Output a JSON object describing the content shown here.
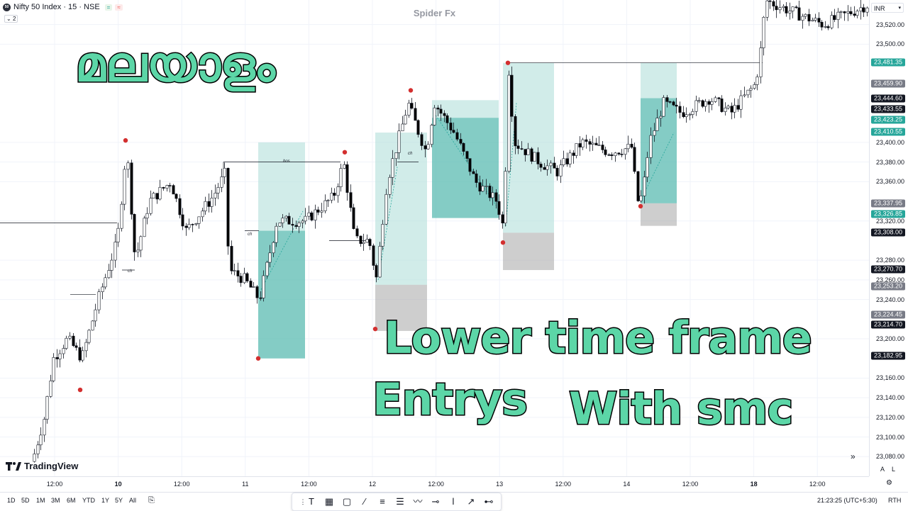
{
  "symbol": {
    "name": "Nifty 50 Index · 15 · NSE",
    "logo_text": "50",
    "badge1": "=",
    "badge2": "≈",
    "collapse_count": "2"
  },
  "watermark": "Spider Fx",
  "currency": "INR",
  "overlay": {
    "title_ml": "മലയാളം",
    "line1": "Lower time frame",
    "line2a": "Entrys",
    "line2b": "With smc"
  },
  "brand": "TradingView",
  "chart_labels": {
    "bos": "bos",
    "ch": "ch"
  },
  "colors": {
    "up": "#ffffff",
    "down": "#000000",
    "zone_green": "#26a69a",
    "zone_light": "#b2dfdb",
    "zone_grey": "#9e9e9e",
    "swing": "#d32f2f",
    "label_green": "#26a69a",
    "label_grey": "#787b86",
    "label_black": "#131722"
  },
  "y_axis": {
    "range": [
      23060,
      23545
    ],
    "ticks": [
      "23,520.00",
      "23,500.00",
      "23,400.00",
      "23,380.00",
      "23,360.00",
      "23,320.00",
      "23,280.00",
      "23,260.00",
      "23,240.00",
      "23,200.00",
      "23,160.00",
      "23,140.00",
      "23,120.00",
      "23,100.00",
      "23,080.00"
    ],
    "tick_values": [
      23520,
      23500,
      23400,
      23380,
      23360,
      23320,
      23280,
      23260,
      23240,
      23200,
      23160,
      23140,
      23120,
      23100,
      23080
    ],
    "labels": [
      {
        "text": "23,481.35",
        "value": 23481.35,
        "kind": "green"
      },
      {
        "text": "23,459.90",
        "value": 23459.9,
        "kind": "grey"
      },
      {
        "text": "23,444.60",
        "value": 23444.6,
        "kind": "black"
      },
      {
        "text": "23,433.55",
        "value": 23433.55,
        "kind": "black"
      },
      {
        "text": "23,423.25",
        "value": 23423.25,
        "kind": "green"
      },
      {
        "text": "23,410.55",
        "value": 23410.55,
        "kind": "green"
      },
      {
        "text": "23,337.95",
        "value": 23337.95,
        "kind": "grey"
      },
      {
        "text": "23,326.85",
        "value": 23326.85,
        "kind": "green"
      },
      {
        "text": "23,308.00",
        "value": 23308.0,
        "kind": "black"
      },
      {
        "text": "23,270.70",
        "value": 23270.7,
        "kind": "black"
      },
      {
        "text": "23,253.20",
        "value": 23253.2,
        "kind": "grey"
      },
      {
        "text": "23,224.45",
        "value": 23224.45,
        "kind": "grey"
      },
      {
        "text": "23,214.70",
        "value": 23214.7,
        "kind": "black"
      },
      {
        "text": "23,182.95",
        "value": 23182.95,
        "kind": "black"
      }
    ]
  },
  "x_axis": {
    "ticks": [
      {
        "label": "12:00",
        "bold": false,
        "slot": 0
      },
      {
        "label": "10",
        "bold": true,
        "slot": 1
      },
      {
        "label": "12:00",
        "bold": false,
        "slot": 2
      },
      {
        "label": "11",
        "bold": false,
        "slot": 3
      },
      {
        "label": "12:00",
        "bold": false,
        "slot": 4
      },
      {
        "label": "12",
        "bold": false,
        "slot": 5
      },
      {
        "label": "12:00",
        "bold": false,
        "slot": 6
      },
      {
        "label": "13",
        "bold": false,
        "slot": 7
      },
      {
        "label": "12:00",
        "bold": false,
        "slot": 8
      },
      {
        "label": "14",
        "bold": false,
        "slot": 9
      },
      {
        "label": "12:00",
        "bold": false,
        "slot": 10
      },
      {
        "label": "18",
        "bold": true,
        "slot": 11
      },
      {
        "label": "12:00",
        "bold": false,
        "slot": 12
      }
    ]
  },
  "ranges": [
    "1D",
    "5D",
    "1M",
    "3M",
    "6M",
    "YTD",
    "1Y",
    "5Y",
    "All"
  ],
  "status": {
    "time": "21:23:25 (UTC+5:30)",
    "session": "RTH",
    "auto": "A",
    "log": "L"
  },
  "tools": [
    "text-tool",
    "pattern-tool",
    "rectangle-tool",
    "trendline-tool",
    "fib-tool",
    "position-tool",
    "path-tool",
    "hline-tool",
    "vline-tool",
    "curve-tool",
    "ray-tool"
  ],
  "chart_data": {
    "type": "candlestick",
    "title": "Nifty 50 Index · 15 · NSE",
    "zones": [
      {
        "name": "zone-1",
        "top": 23400,
        "bottom": 23180,
        "split": 23310,
        "stop_bottom": 23185
      },
      {
        "name": "zone-2",
        "top": 23410,
        "bottom": 23255,
        "stop_bottom": 23208
      },
      {
        "name": "zone-3",
        "top": 23443,
        "bottom": 23323,
        "split": 23425
      },
      {
        "name": "zone-4",
        "top": 23481,
        "bottom": 23308,
        "stop_bottom": 23270
      },
      {
        "name": "zone-5",
        "top": 23481,
        "bottom": 23338,
        "split": 23445,
        "stop_bottom": 23315
      }
    ],
    "swing_points": [
      23402,
      23148,
      23180,
      23390,
      23210,
      23453,
      23298,
      23481,
      23335
    ]
  }
}
